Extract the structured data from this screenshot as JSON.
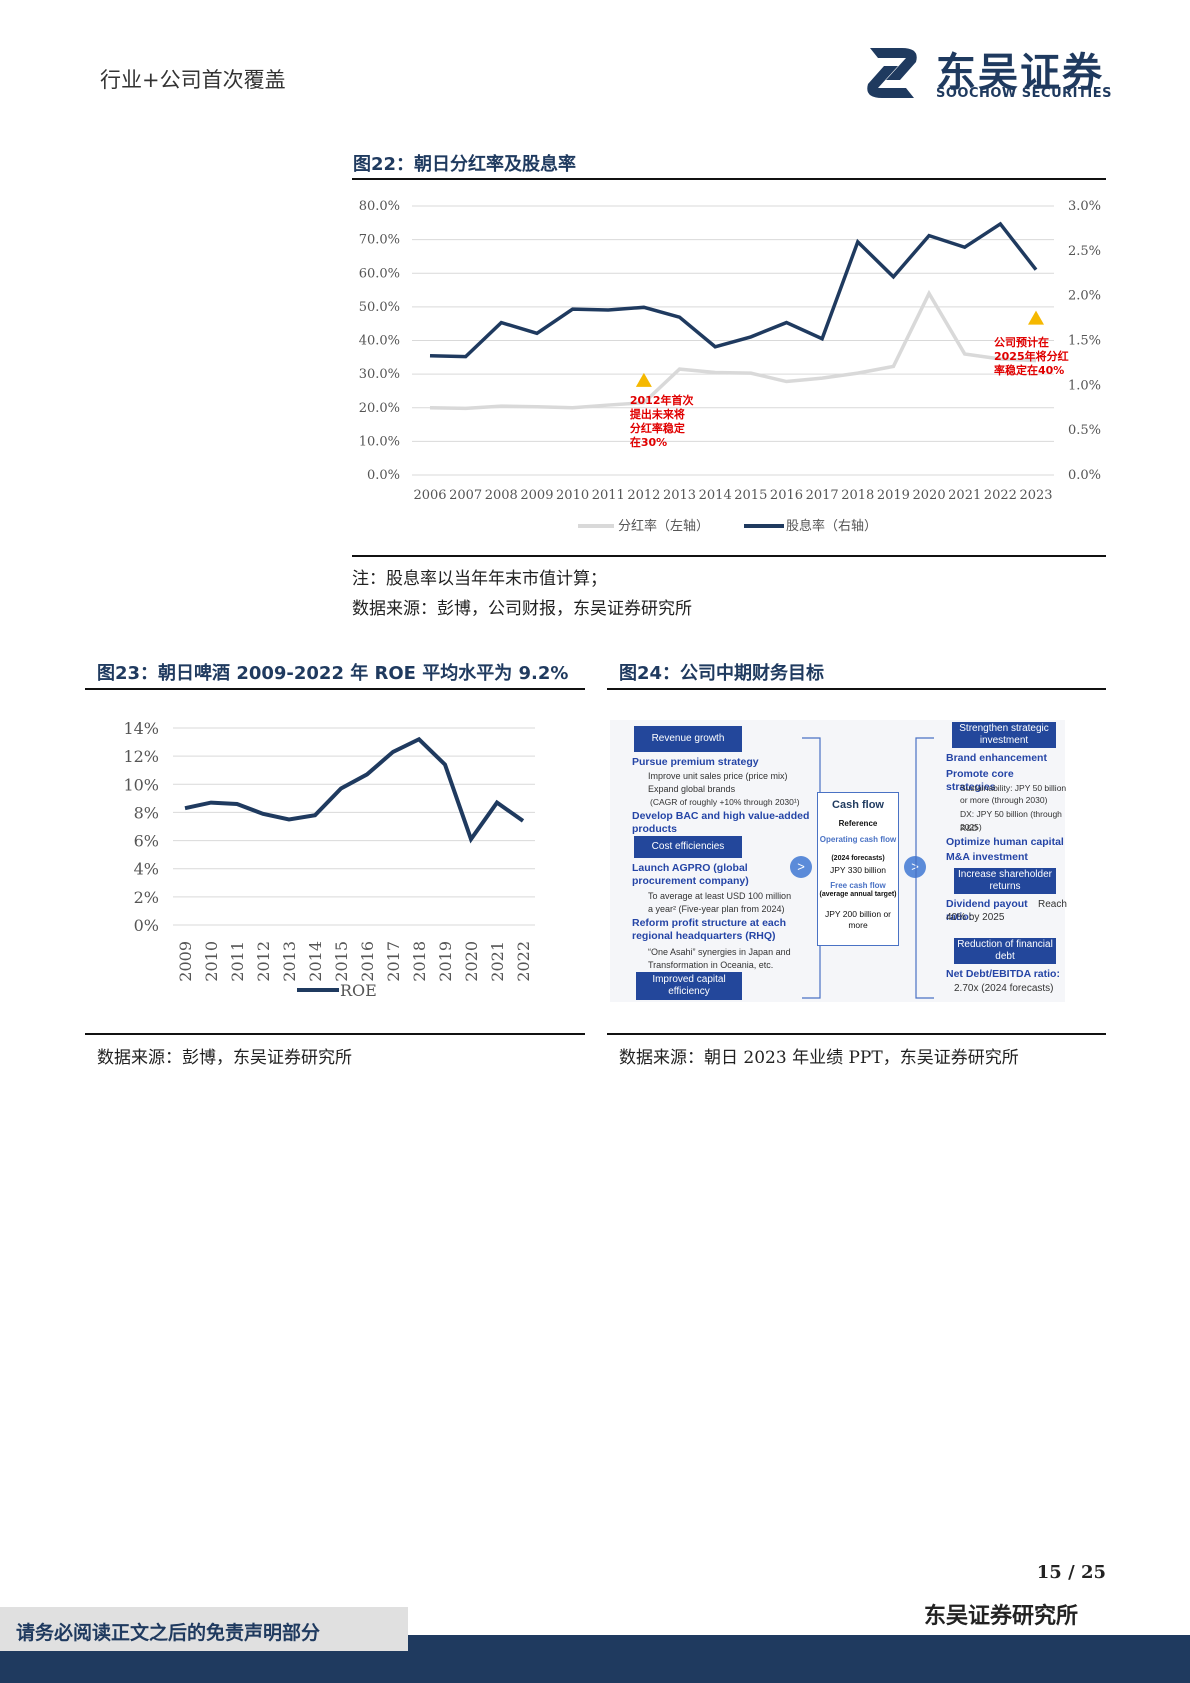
{
  "header": {
    "left_title": "行业+公司首次覆盖",
    "logo_cn": "东吴证券",
    "logo_en": "SOOCHOW SECURITIES"
  },
  "figure22": {
    "title": "图22：朝日分红率及股息率",
    "note": "注：股息率以当年年末市值计算；",
    "source": "数据来源：彭博，公司财报，东吴证券研究所",
    "annotation_left": [
      "2012年首次",
      "提出未来将",
      "分红率稳定",
      "在30%"
    ],
    "annotation_right": [
      "公司预计在",
      "2025年将分红",
      "率稳定在40%"
    ],
    "left_ticks": [
      "0.0%",
      "10.0%",
      "20.0%",
      "30.0%",
      "40.0%",
      "50.0%",
      "60.0%",
      "70.0%",
      "80.0%"
    ],
    "right_ticks": [
      "0.0%",
      "0.5%",
      "1.0%",
      "1.5%",
      "2.0%",
      "2.5%",
      "3.0%"
    ],
    "legend": [
      "分红率（左轴）",
      "股息率（右轴）"
    ]
  },
  "figure23": {
    "title": "图23：朝日啤酒 2009-2022 年 ROE 平均水平为 9.2%",
    "source": "数据来源：彭博，东吴证券研究所",
    "y_ticks": [
      "0%",
      "2%",
      "4%",
      "6%",
      "8%",
      "10%",
      "12%",
      "14%"
    ],
    "legend": "ROE"
  },
  "figure24": {
    "title": "图24：公司中期财务目标",
    "source": "数据来源：朝日 2023 年业绩 PPT，东吴证券研究所",
    "revenue_growth": "Revenue growth",
    "pursue_premium": "Pursue premium strategy",
    "improve_price": "Improve unit sales price (price mix)",
    "expand_brands": "Expand global brands",
    "cagr_note": "(CAGR of roughly +10% through 2030¹)",
    "develop_bac": "Develop BAC and high value-added products",
    "cost_efficiencies": "Cost efficiencies",
    "launch_agpro": "Launch AGPRO (global procurement company)",
    "usd_target": "To average at least USD 100 million a year² (Five-year plan from 2024)",
    "reform_profit": "Reform profit structure at each regional headquarters (RHQ)",
    "one_asahi": "“One Asahi” synergies in Japan and Transformation in Oceania, etc.",
    "improved_capital": "Improved capital efficiency",
    "cash_flow_title": "Cash flow",
    "reference": "Reference",
    "operating_cf": "Operating cash flow",
    "forecasts_2024": "(2024 forecasts)",
    "jpy_330": "JPY 330 billion",
    "free_cf": "Free cash flow",
    "avg_annual": "(average annual target)",
    "jpy_200": "JPY 200 billion or more",
    "strengthen": "Strengthen strategic investment",
    "brand_enh": "Brand enhancement",
    "promote_core": "Promote core strategies",
    "sustainability": "Sustainability: JPY 50 billion or more (through 2030)",
    "dx": "DX: JPY 50 billion (through 2025)",
    "rnd": "R&D",
    "optimize_hc": "Optimize human capital",
    "mna": "M&A investment",
    "increase_returns": "Increase shareholder returns",
    "dividend_payout": "Dividend payout ratio:",
    "dividend_val": "Reach 40% by 2025",
    "reduction_debt": "Reduction of financial debt",
    "net_debt": "Net Debt/EBITDA ratio:",
    "net_debt_val": "2.70x (2024 forecasts)"
  },
  "footer": {
    "page": "15  /  25",
    "org": "东吴证券研究所",
    "disclaimer": "请务必阅读正文之后的免责声明部分"
  },
  "chart_data": [
    {
      "type": "line",
      "title": "图22：朝日分红率及股息率",
      "x": [
        "2006",
        "2007",
        "2008",
        "2009",
        "2010",
        "2011",
        "2012",
        "2013",
        "2014",
        "2015",
        "2016",
        "2017",
        "2018",
        "2019",
        "2020",
        "2021",
        "2022",
        "2023"
      ],
      "series": [
        {
          "name": "分红率（左轴）",
          "axis": "left",
          "color": "#d9d9d9",
          "values": [
            20.0,
            19.8,
            20.5,
            20.3,
            20.0,
            20.8,
            21.5,
            31.5,
            30.5,
            30.3,
            27.8,
            28.8,
            30.3,
            32.3,
            54.0,
            36.0,
            34.5,
            34.0
          ]
        },
        {
          "name": "股息率（右轴）",
          "axis": "right",
          "color": "#1f3a5f",
          "values": [
            1.33,
            1.32,
            1.7,
            1.58,
            1.85,
            1.84,
            1.87,
            1.76,
            1.43,
            1.54,
            1.7,
            1.52,
            2.6,
            2.21,
            2.67,
            2.54,
            2.8,
            2.29
          ]
        }
      ],
      "ylim_left": [
        0,
        80
      ],
      "ylim_right": [
        0,
        3.0
      ],
      "markers": [
        {
          "x": "2012",
          "y_left": 28,
          "color": "#f5b800"
        },
        {
          "x": "2023",
          "y_left": 46.5,
          "color": "#f5b800"
        }
      ]
    },
    {
      "type": "line",
      "title": "图23：朝日啤酒 2009-2022 年 ROE 平均水平为 9.2%",
      "x": [
        "2009",
        "2010",
        "2011",
        "2012",
        "2013",
        "2014",
        "2015",
        "2016",
        "2017",
        "2018",
        "2019",
        "2020",
        "2021",
        "2022"
      ],
      "series": [
        {
          "name": "ROE",
          "color": "#1f3a5f",
          "values": [
            8.3,
            8.7,
            8.6,
            7.9,
            7.5,
            7.8,
            9.7,
            10.7,
            12.3,
            13.2,
            11.4,
            6.1,
            8.7,
            7.4
          ]
        }
      ],
      "ylim": [
        0,
        14
      ]
    }
  ]
}
